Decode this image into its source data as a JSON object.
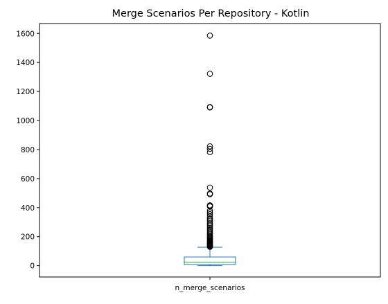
{
  "chart_data": {
    "type": "box",
    "title": "Merge Scenarios Per Repository - Kotlin",
    "xlabel": "",
    "ylabel": "",
    "categories": [
      "n_merge_scenarios"
    ],
    "ylim": [
      -78,
      1668
    ],
    "yticks": [
      0,
      200,
      400,
      600,
      800,
      1000,
      1200,
      1400,
      1600
    ],
    "grid": false,
    "box": {
      "whisker_low": 0,
      "q1": 8,
      "median": 24,
      "q3": 60,
      "whisker_high": 127
    },
    "fliers": [
      1585,
      1322,
      1093,
      1090,
      822,
      805,
      782,
      538,
      497,
      492,
      416,
      411,
      408,
      378,
      367,
      355,
      340,
      325,
      316,
      306,
      292,
      280,
      270,
      260,
      250,
      242,
      232,
      224,
      216,
      207,
      201,
      195,
      189,
      183,
      178,
      172,
      167,
      162,
      157,
      153,
      149,
      145,
      141,
      138,
      135,
      132,
      130
    ],
    "colors": {
      "box": "#1f77b4",
      "median": "#2ca02c",
      "flier": "#000000",
      "axis": "#000000"
    }
  }
}
